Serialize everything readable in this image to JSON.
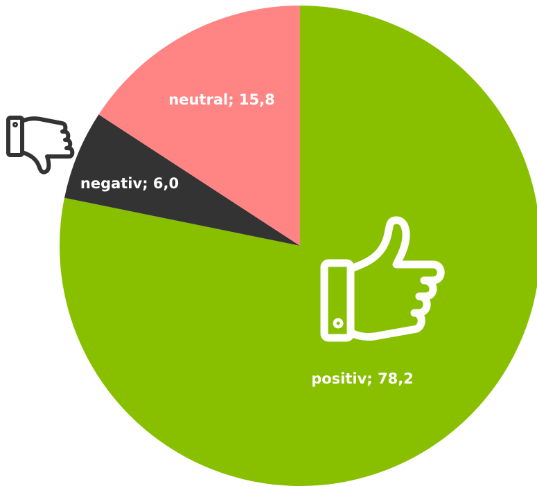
{
  "chart_data": {
    "type": "pie",
    "values": [
      78.2,
      6.0,
      15.8
    ],
    "value_labels": [
      "positiv; 78,2",
      "negativ; 6,0",
      "neutral; 15,8"
    ],
    "colors": [
      "#88c000",
      "#333333",
      "#ff8585"
    ]
  }
}
